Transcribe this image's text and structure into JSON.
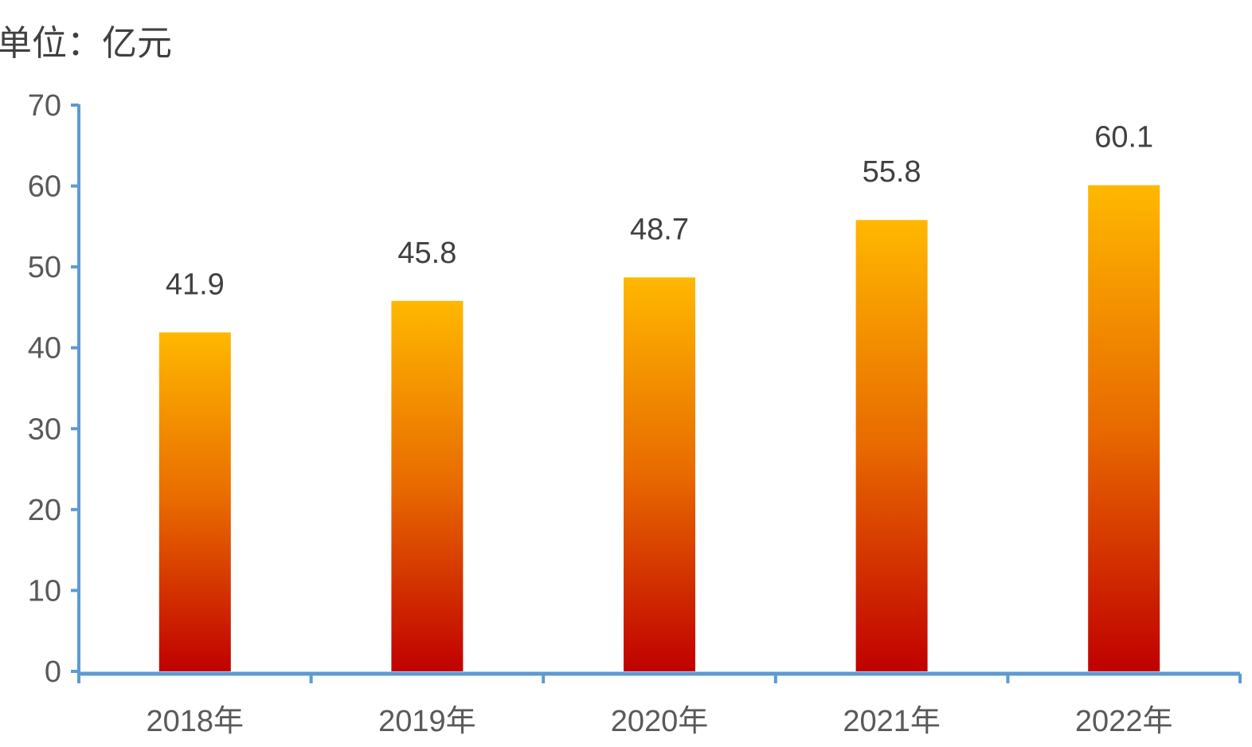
{
  "chart_data": {
    "type": "bar",
    "unit_label": "单位：亿元",
    "categories": [
      "2018年",
      "2019年",
      "2020年",
      "2021年",
      "2022年"
    ],
    "values": [
      41.9,
      45.8,
      48.7,
      55.8,
      60.1
    ],
    "value_labels": [
      "41.9",
      "45.8",
      "48.7",
      "55.8",
      "60.1"
    ],
    "y_ticks": [
      0,
      10,
      20,
      30,
      40,
      50,
      60,
      70
    ],
    "ylim": [
      0,
      70
    ],
    "grid": false,
    "legend": "none",
    "colors": {
      "bar_top": "#FFB800",
      "bar_mid": "#E86A00",
      "bar_bottom": "#C00000",
      "axis": "#5B9BD5"
    }
  }
}
